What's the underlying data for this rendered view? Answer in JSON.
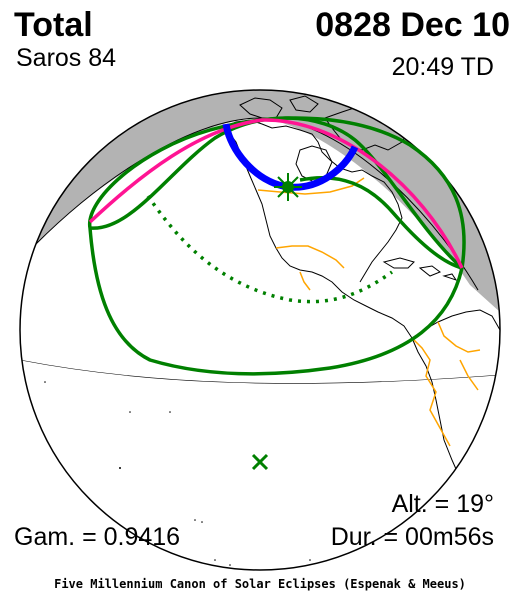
{
  "header": {
    "eclipse_type": "Total",
    "date": "0828 Dec 10",
    "saros": "Saros  84",
    "time": "20:49 TD"
  },
  "footer": {
    "altitude": "Alt. = 19°",
    "gamma": "Gam. = 0.9416",
    "duration": "Dur. = 00m56s",
    "credit": "Five Millennium Canon of Solar Eclipses (Espenak & Meeus)"
  },
  "map": {
    "projection": "orthographic globe",
    "colors": {
      "night_side": "#b3b3b3",
      "globe_outline": "#000000",
      "coastlines": "#000000",
      "borders": "#ffa500",
      "penumbra_limits": "#008000",
      "central_path_limits": "#ff1493",
      "totality_track": "#0000ff",
      "greatest_eclipse_marker": "#008000"
    },
    "markers": {
      "greatest_eclipse": "star-burst",
      "sub_solar_point": "x-mark"
    }
  }
}
